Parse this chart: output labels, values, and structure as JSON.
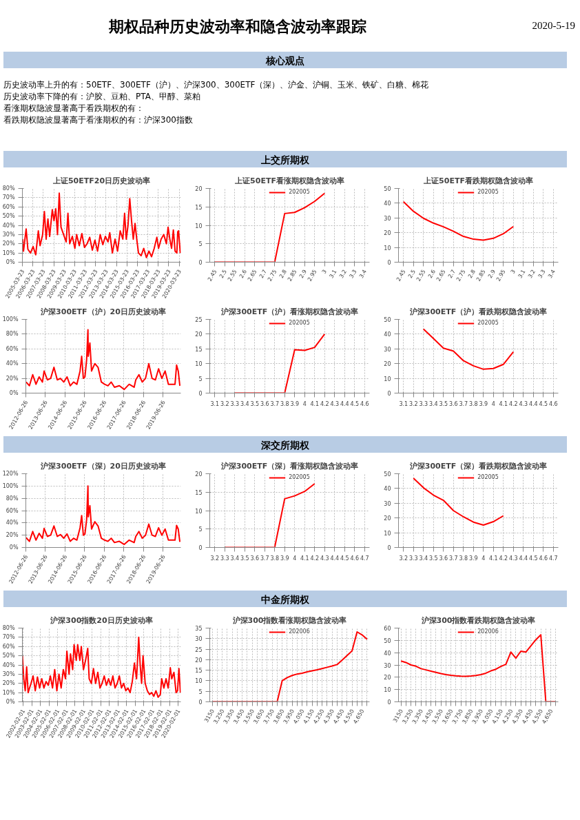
{
  "chart_data": [
    {
      "type": "other",
      "title": "期权品种历史波动率和隐含波动率跟踪",
      "subtitle": "2020-5-19",
      "annotations": [
        "核心观点",
        "历史波动率上升的有：50ETF、300ETF（沪）、沪深300、300ETF（深）、沪金、沪铜、玉米、铁矿、白糖、棉花",
        "历史波动率下降的有：沪胶、豆粕、PTA、甲醇、菜粕",
        "看涨期权隐波显著高于看跌期权的有：",
        "看跌期权隐波显著高于看涨期权的有：沪深300指数",
        "上交所期权",
        "深交所期权",
        "中金所期权"
      ]
    },
    {
      "type": "line",
      "title": "上证50ETF20日历史波动率",
      "grid": true,
      "x": [
        "2005-04",
        "2005-05",
        "2005-08",
        "2005-10",
        "2006-01",
        "2006-04",
        "2006-07",
        "2006-10",
        "2006-12",
        "2007-03",
        "2007-05",
        "2007-07",
        "2007-09",
        "2007-11",
        "2008-02",
        "2008-04",
        "2008-06",
        "2008-08",
        "2008-10",
        "2008-12",
        "2009-03",
        "2009-06",
        "2009-08",
        "2009-10",
        "2010-01",
        "2010-04",
        "2010-06",
        "2010-09",
        "2010-12",
        "2011-03",
        "2011-06",
        "2011-09",
        "2011-12",
        "2012-03",
        "2012-06",
        "2012-09",
        "2012-12",
        "2013-03",
        "2013-06",
        "2013-08",
        "2013-11",
        "2014-02",
        "2014-05",
        "2014-08",
        "2014-11",
        "2015-01",
        "2015-03",
        "2015-05",
        "2015-07",
        "2015-09",
        "2015-11",
        "2016-01",
        "2016-03",
        "2016-05",
        "2016-08",
        "2016-11",
        "2017-02",
        "2017-05",
        "2017-08",
        "2017-11",
        "2018-02",
        "2018-04",
        "2018-07",
        "2018-10",
        "2019-01",
        "2019-03",
        "2019-05",
        "2019-07",
        "2019-09",
        "2019-11",
        "2020-01",
        "2020-02",
        "2020-03",
        "2020-05"
      ],
      "series": [
        {
          "color": "#ff0000",
          "values": [
            25,
            12,
            36,
            14,
            10,
            17,
            8,
            34,
            18,
            30,
            55,
            25,
            47,
            28,
            57,
            45,
            58,
            30,
            75,
            38,
            30,
            22,
            53,
            20,
            28,
            15,
            30,
            18,
            31,
            16,
            20,
            27,
            13,
            24,
            12,
            30,
            19,
            28,
            22,
            32,
            10,
            25,
            12,
            34,
            25,
            53,
            25,
            40,
            69,
            45,
            25,
            42,
            25,
            10,
            7,
            15,
            5,
            12,
            6,
            15,
            27,
            15,
            25,
            30,
            20,
            38,
            25,
            15,
            35,
            12,
            10,
            33,
            34,
            10
          ]
        }
      ],
      "xlim": [
        "2005-03-23",
        "2020-05-19"
      ],
      "xticks": [
        "2005-03-23",
        "2006-03-23",
        "2007-03-23",
        "2008-03-23",
        "2009-03-23",
        "2010-03-23",
        "2011-03-23",
        "2012-03-23",
        "2013-03-23",
        "2014-03-23",
        "2015-03-23",
        "2016-03-23",
        "2017-03-23",
        "2018-03-23",
        "2019-03-23",
        "2020-03-23"
      ],
      "ylim": [
        0,
        80
      ],
      "yticks": [
        {
          "value": 0,
          "label": "0%"
        },
        {
          "value": 10,
          "label": "10%"
        },
        {
          "value": 20,
          "label": "20%"
        },
        {
          "value": 30,
          "label": "30%"
        },
        {
          "value": 40,
          "label": "40%"
        },
        {
          "value": 50,
          "label": "50%"
        },
        {
          "value": 60,
          "label": "60%"
        },
        {
          "value": 70,
          "label": "70%"
        },
        {
          "value": 80,
          "label": "80%"
        }
      ]
    },
    {
      "type": "line",
      "title": "上证50ETF看涨期权隐含波动率",
      "grid": true,
      "legend": "top",
      "categories": [
        "2.45",
        "2.5",
        "2.55",
        "2.6",
        "2.65",
        "2.7",
        "2.75",
        "2.8",
        "2.85",
        "2.9",
        "2.95",
        "3",
        "3.1",
        "3.2",
        "3.3",
        "3.4"
      ],
      "series": [
        {
          "name": "202005",
          "color": "#ff0000",
          "values": [
            0,
            0,
            0,
            0,
            0,
            0,
            0,
            13.2,
            13.5,
            14.8,
            16.5,
            18.7,
            null,
            null,
            null,
            null
          ]
        }
      ],
      "ylim": [
        0,
        20
      ],
      "yticks": [
        0,
        5,
        10,
        15,
        20
      ]
    },
    {
      "type": "line",
      "title": "上证50ETF看跌期权隐含波动率",
      "grid": true,
      "legend": "top",
      "categories": [
        "2.45",
        "2.5",
        "2.55",
        "2.6",
        "2.65",
        "2.7",
        "2.75",
        "2.8",
        "2.85",
        "2.9",
        "2.95",
        "3",
        "3.1",
        "3.2",
        "3.3",
        "3.4"
      ],
      "series": [
        {
          "name": "202005",
          "color": "#ff0000",
          "values": [
            41,
            34.5,
            29.8,
            26.5,
            24,
            21,
            17.5,
            15.6,
            15,
            16.2,
            19.3,
            24.2,
            null,
            null,
            null,
            null
          ]
        }
      ],
      "ylim": [
        0,
        50
      ],
      "yticks": [
        0,
        10,
        20,
        30,
        40,
        50
      ]
    },
    {
      "type": "line",
      "title": "沪深300ETF（沪）20日历史波动率",
      "grid": true,
      "x": [
        "2012-07",
        "2012-09",
        "2012-11",
        "2013-01",
        "2013-03",
        "2013-05",
        "2013-06",
        "2013-08",
        "2013-10",
        "2013-12",
        "2014-02",
        "2014-04",
        "2014-06",
        "2014-08",
        "2014-10",
        "2014-12",
        "2015-02",
        "2015-04",
        "2015-05",
        "2015-06",
        "2015-07",
        "2015-08",
        "2015-08-26",
        "2015-09",
        "2015-10",
        "2015-11",
        "2016-01",
        "2016-03",
        "2016-05",
        "2016-07",
        "2016-09",
        "2016-11",
        "2017-01",
        "2017-04",
        "2017-07",
        "2017-10",
        "2018-01",
        "2018-02",
        "2018-04",
        "2018-06",
        "2018-08",
        "2018-10",
        "2018-12",
        "2019-02",
        "2019-04",
        "2019-06",
        "2019-08",
        "2019-10",
        "2019-12",
        "2020-02",
        "2020-03",
        "2020-04",
        "2020-05"
      ],
      "series": [
        {
          "color": "#ff0000",
          "values": [
            15,
            10,
            25,
            12,
            22,
            15,
            30,
            18,
            20,
            35,
            18,
            20,
            15,
            22,
            10,
            15,
            12,
            30,
            50,
            20,
            22,
            45,
            86,
            50,
            68,
            30,
            40,
            35,
            15,
            12,
            10,
            15,
            8,
            10,
            5,
            12,
            8,
            18,
            25,
            15,
            20,
            40,
            20,
            18,
            33,
            20,
            30,
            12,
            12,
            12,
            38,
            30,
            10
          ]
        }
      ],
      "xlim": [
        "2012-06-26",
        "2020-05-19"
      ],
      "xticks": [
        "2012-06-26",
        "2013-06-26",
        "2014-06-26",
        "2015-06-26",
        "2016-06-26",
        "2017-06-26",
        "2018-06-26",
        "2019-06-26"
      ],
      "ylim": [
        0,
        100
      ],
      "yticks": [
        {
          "value": 0,
          "label": "0%"
        },
        {
          "value": 20,
          "label": "20%"
        },
        {
          "value": 40,
          "label": "40%"
        },
        {
          "value": 60,
          "label": "60%"
        },
        {
          "value": 80,
          "label": "80%"
        },
        {
          "value": 100,
          "label": "100%"
        }
      ]
    },
    {
      "type": "line",
      "title": "沪深300ETF（沪）看涨期权隐含波动率",
      "grid": true,
      "legend": "top",
      "categories": [
        "3.1",
        "3.2",
        "3.3",
        "3.4",
        "3.5",
        "3.6",
        "3.7",
        "3.8",
        "3.9",
        "4",
        "4.1",
        "4.2",
        "4.3",
        "4.4",
        "4.5",
        "4.6"
      ],
      "series": [
        {
          "name": "202005",
          "color": "#ff0000",
          "values": [
            null,
            null,
            0,
            0,
            0,
            0,
            0,
            0,
            14.7,
            14.5,
            15.5,
            20,
            null,
            null,
            null,
            null
          ]
        }
      ],
      "ylim": [
        0,
        25
      ],
      "yticks": [
        0,
        5,
        10,
        15,
        20,
        25
      ]
    },
    {
      "type": "line",
      "title": "沪深300ETF（沪）看跌期权隐含波动率",
      "grid": true,
      "legend": "top",
      "categories": [
        "3.1",
        "3.2",
        "3.3",
        "3.4",
        "3.5",
        "3.6",
        "3.7",
        "3.8",
        "3.9",
        "4",
        "4.1",
        "4.2",
        "4.3",
        "4.4",
        "4.5",
        "4.6"
      ],
      "series": [
        {
          "name": "202005",
          "color": "#ff0000",
          "values": [
            null,
            null,
            43.5,
            37,
            30.5,
            28.5,
            22,
            18.5,
            16.2,
            16.7,
            19.5,
            28,
            null,
            null,
            null,
            null
          ]
        }
      ],
      "ylim": [
        0,
        50
      ],
      "yticks": [
        0,
        10,
        20,
        30,
        40,
        50
      ]
    },
    {
      "type": "line",
      "title": "沪深300ETF（深）20日历史波动率",
      "grid": true,
      "x": [
        "2012-07",
        "2012-09",
        "2012-11",
        "2013-01",
        "2013-03",
        "2013-05",
        "2013-06",
        "2013-08",
        "2013-10",
        "2013-12",
        "2014-02",
        "2014-04",
        "2014-06",
        "2014-08",
        "2014-10",
        "2014-12",
        "2015-02",
        "2015-04",
        "2015-05",
        "2015-06",
        "2015-07",
        "2015-08",
        "2015-08-26",
        "2015-09",
        "2015-10",
        "2015-11",
        "2016-01",
        "2016-03",
        "2016-05",
        "2016-07",
        "2016-09",
        "2016-11",
        "2017-01",
        "2017-04",
        "2017-07",
        "2017-10",
        "2018-01",
        "2018-02",
        "2018-04",
        "2018-06",
        "2018-08",
        "2018-10",
        "2018-12",
        "2019-02",
        "2019-04",
        "2019-06",
        "2019-08",
        "2019-10",
        "2019-12",
        "2020-02",
        "2020-03",
        "2020-04",
        "2020-05"
      ],
      "series": [
        {
          "color": "#ff0000",
          "values": [
            16,
            10,
            26,
            12,
            23,
            15,
            31,
            18,
            20,
            35,
            18,
            21,
            15,
            22,
            10,
            15,
            12,
            32,
            52,
            20,
            22,
            45,
            100,
            50,
            68,
            30,
            42,
            35,
            15,
            12,
            10,
            15,
            8,
            10,
            5,
            12,
            8,
            18,
            26,
            15,
            20,
            38,
            20,
            18,
            32,
            20,
            30,
            12,
            12,
            12,
            36,
            30,
            9
          ]
        }
      ],
      "xlim": [
        "2012-06-26",
        "2020-05-19"
      ],
      "xticks": [
        "2012-06-26",
        "2013-06-26",
        "2014-06-26",
        "2015-06-26",
        "2016-06-26",
        "2017-06-26",
        "2018-06-26",
        "2019-06-26"
      ],
      "ylim": [
        0,
        120
      ],
      "yticks": [
        {
          "value": 0,
          "label": "0%"
        },
        {
          "value": 20,
          "label": "20%"
        },
        {
          "value": 40,
          "label": "40%"
        },
        {
          "value": 60,
          "label": "60%"
        },
        {
          "value": 80,
          "label": "80%"
        },
        {
          "value": 100,
          "label": "100%"
        },
        {
          "value": 120,
          "label": "120%"
        }
      ]
    },
    {
      "type": "line",
      "title": "沪深300ETF（深）看涨期权隐含波动率",
      "grid": true,
      "legend": "top",
      "categories": [
        "3.2",
        "3.3",
        "3.4",
        "3.5",
        "3.6",
        "3.7",
        "3.8",
        "3.9",
        "4",
        "4.1",
        "4.2",
        "4.3",
        "4.4",
        "4.5",
        "4.6",
        "4.7"
      ],
      "series": [
        {
          "name": "202005",
          "color": "#ff0000",
          "values": [
            null,
            0,
            0,
            0,
            0,
            0,
            0,
            13.2,
            14,
            15.2,
            17.3,
            null,
            null,
            null,
            null,
            null
          ]
        }
      ],
      "ylim": [
        0,
        20
      ],
      "yticks": [
        0,
        5,
        10,
        15,
        20
      ]
    },
    {
      "type": "line",
      "title": "沪深300ETF（深）看跌期权隐含波动率",
      "grid": true,
      "legend": "top",
      "categories": [
        "3.2",
        "3.3",
        "3.4",
        "3.5",
        "3.6",
        "3.7",
        "3.8",
        "3.9",
        "4",
        "4.1",
        "4.2",
        "4.3",
        "4.4",
        "4.5",
        "4.6",
        "4.7"
      ],
      "series": [
        {
          "name": "202005",
          "color": "#ff0000",
          "values": [
            null,
            47,
            40.5,
            35.5,
            32,
            25,
            20.8,
            17.2,
            15.2,
            17.5,
            21.5,
            null,
            null,
            null,
            null,
            null
          ]
        }
      ],
      "ylim": [
        0,
        50
      ],
      "yticks": [
        0,
        10,
        20,
        30,
        40,
        50
      ]
    },
    {
      "type": "line",
      "title": "沪深300指数20日历史波动率",
      "grid": true,
      "x": [
        "2002-01",
        "2002-03",
        "2002-05",
        "2002-07",
        "2002-09",
        "2003-01",
        "2003-04",
        "2003-07",
        "2003-10",
        "2004-01",
        "2004-04",
        "2004-07",
        "2004-10",
        "2005-01",
        "2005-04",
        "2005-07",
        "2005-10",
        "2006-01",
        "2006-04",
        "2006-07",
        "2006-10",
        "2007-01",
        "2007-03",
        "2007-06",
        "2007-08",
        "2007-11",
        "2008-01",
        "2008-04",
        "2008-06",
        "2008-09",
        "2008-11",
        "2009-02",
        "2009-05",
        "2009-08",
        "2009-10",
        "2010-01",
        "2010-04",
        "2010-07",
        "2010-10",
        "2011-01",
        "2011-04",
        "2011-07",
        "2011-10",
        "2012-01",
        "2012-04",
        "2012-07",
        "2012-10",
        "2013-01",
        "2013-04",
        "2013-07",
        "2013-10",
        "2014-01",
        "2014-04",
        "2014-07",
        "2014-10",
        "2015-01",
        "2015-04",
        "2015-07",
        "2015-09",
        "2015-11",
        "2016-01",
        "2016-04",
        "2016-07",
        "2016-10",
        "2017-01",
        "2017-04",
        "2017-07",
        "2017-10",
        "2018-01",
        "2018-03",
        "2018-06",
        "2018-09",
        "2018-12",
        "2019-03",
        "2019-05",
        "2019-08",
        "2019-11",
        "2020-01",
        "2020-03",
        "2020-05"
      ],
      "series": [
        {
          "color": "#ff0000",
          "values": [
            50,
            25,
            12,
            38,
            10,
            20,
            28,
            12,
            27,
            15,
            25,
            15,
            22,
            18,
            28,
            15,
            35,
            12,
            30,
            15,
            35,
            25,
            55,
            30,
            52,
            35,
            62,
            45,
            62,
            45,
            60,
            35,
            45,
            58,
            25,
            20,
            36,
            20,
            32,
            15,
            20,
            28,
            18,
            25,
            18,
            28,
            15,
            20,
            28,
            15,
            20,
            12,
            15,
            10,
            22,
            42,
            25,
            70,
            40,
            20,
            50,
            20,
            12,
            8,
            10,
            6,
            12,
            5,
            8,
            25,
            15,
            25,
            15,
            37,
            25,
            32,
            10,
            12,
            36,
            10
          ]
        }
      ],
      "xlim": [
        "2002-01-01",
        "2020-05-19"
      ],
      "xticks": [
        "2002-02-01",
        "2003-02-01",
        "2004-02-01",
        "2005-02-01",
        "2006-02-01",
        "2007-02-01",
        "2008-02-01",
        "2009-02-01",
        "2010-02-01",
        "2011-02-01",
        "2012-02-01",
        "2013-02-01",
        "2014-02-01",
        "2015-02-01",
        "2016-02-01",
        "2017-02-01",
        "2018-02-01",
        "2019-02-01",
        "2020-02-01"
      ],
      "ylim": [
        0,
        80
      ],
      "yticks": [
        {
          "value": 0,
          "label": "0%"
        },
        {
          "value": 10,
          "label": "10%"
        },
        {
          "value": 20,
          "label": "20%"
        },
        {
          "value": 30,
          "label": "30%"
        },
        {
          "value": 40,
          "label": "40%"
        },
        {
          "value": 50,
          "label": "50%"
        },
        {
          "value": 60,
          "label": "60%"
        },
        {
          "value": 70,
          "label": "70%"
        },
        {
          "value": 80,
          "label": "80%"
        }
      ]
    },
    {
      "type": "line",
      "title": "沪深300指数看涨期权隐含波动率",
      "grid": true,
      "legend": "top",
      "categories": [
        "3150",
        null,
        "3,250",
        null,
        "3,350",
        null,
        "3,450",
        null,
        "3,550",
        null,
        "3,650",
        null,
        "3,750",
        null,
        "3,850",
        null,
        "3,950",
        null,
        "4,050",
        null,
        "4,150",
        null,
        "4,250",
        null,
        "4,350",
        null,
        "4,450",
        null,
        "4,550",
        null,
        "4,650",
        null
      ],
      "series": [
        {
          "name": "202006",
          "color": "#ff0000",
          "values": [
            0,
            0,
            0,
            0,
            0,
            0,
            0,
            0,
            0,
            0,
            0,
            0,
            0,
            0,
            10,
            11.5,
            12.5,
            13.2,
            13.6,
            14.2,
            14.7,
            15.2,
            15.8,
            16.4,
            17,
            17.7,
            19.8,
            22,
            24.2,
            33.2,
            31.8,
            29.7
          ]
        }
      ],
      "ylim": [
        0,
        35
      ],
      "yticks": [
        0,
        5,
        10,
        15,
        20,
        25,
        30,
        35
      ]
    },
    {
      "type": "line",
      "title": "沪深300指数看跌期权隐含波动率",
      "grid": true,
      "legend": "top",
      "categories": [
        "3150",
        null,
        "3,250",
        null,
        "3,350",
        null,
        "3,450",
        null,
        "3,550",
        null,
        "3,650",
        null,
        "3,750",
        null,
        "3,850",
        null,
        "3,950",
        null,
        "4,050",
        null,
        "4,150",
        null,
        "4,250",
        null,
        "4,350",
        null,
        "4,450",
        null,
        "4,550",
        null,
        "4,650",
        null
      ],
      "series": [
        {
          "name": "202006",
          "color": "#ff0000",
          "values": [
            33.2,
            32,
            30,
            29,
            27,
            26,
            25,
            24,
            23,
            22.2,
            21.6,
            21.2,
            20.9,
            20.8,
            21,
            21.5,
            22.2,
            23.3,
            25.2,
            26.5,
            28.8,
            30.5,
            40.5,
            35.5,
            41.2,
            40.5,
            45.5,
            50.5,
            54.5,
            0,
            0,
            0
          ]
        }
      ],
      "ylim": [
        0,
        60
      ],
      "yticks": [
        0,
        10,
        20,
        30,
        40,
        50,
        60
      ]
    }
  ]
}
